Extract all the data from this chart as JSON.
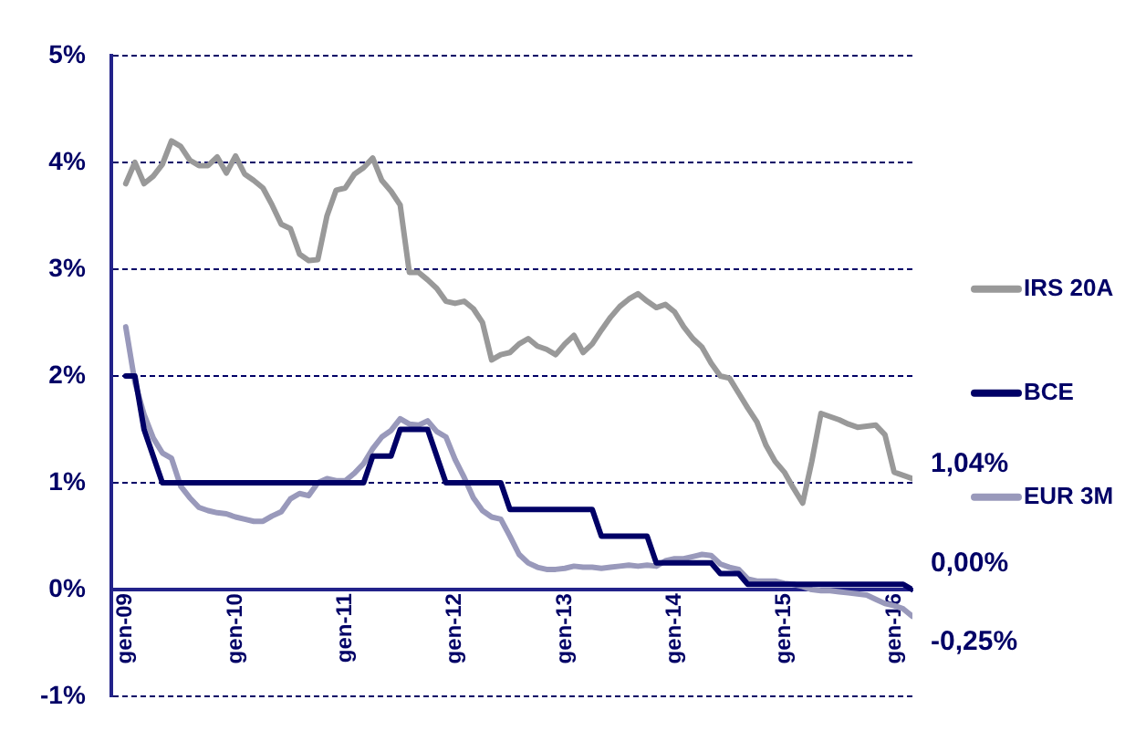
{
  "chart_data": {
    "type": "line",
    "categories": [
      "gen-09",
      null,
      null,
      null,
      null,
      null,
      null,
      null,
      null,
      null,
      null,
      null,
      "gen-10",
      null,
      null,
      null,
      null,
      null,
      null,
      null,
      null,
      null,
      null,
      null,
      "gen-11",
      null,
      null,
      null,
      null,
      null,
      null,
      null,
      null,
      null,
      null,
      null,
      "gen-12",
      null,
      null,
      null,
      null,
      null,
      null,
      null,
      null,
      null,
      null,
      null,
      "gen-13",
      null,
      null,
      null,
      null,
      null,
      null,
      null,
      null,
      null,
      null,
      null,
      "gen-14",
      null,
      null,
      null,
      null,
      null,
      null,
      null,
      null,
      null,
      null,
      null,
      "gen-15",
      null,
      null,
      null,
      null,
      null,
      null,
      null,
      null,
      null,
      null,
      null,
      "gen-16",
      null,
      null
    ],
    "series": [
      {
        "name": "IRS 20A",
        "color": "#999999",
        "values": [
          3.8,
          4.0,
          3.8,
          3.87,
          3.98,
          4.2,
          4.15,
          4.02,
          3.97,
          3.97,
          4.05,
          3.9,
          4.06,
          3.89,
          3.83,
          3.76,
          3.6,
          3.42,
          3.38,
          3.14,
          3.08,
          3.09,
          3.5,
          3.74,
          3.76,
          3.89,
          3.95,
          4.04,
          3.83,
          3.73,
          3.6,
          2.97,
          2.97,
          2.9,
          2.82,
          2.7,
          2.68,
          2.7,
          2.63,
          2.5,
          2.15,
          2.2,
          2.22,
          2.3,
          2.35,
          2.28,
          2.25,
          2.2,
          2.3,
          2.38,
          2.22,
          2.3,
          2.43,
          2.55,
          2.65,
          2.72,
          2.77,
          2.7,
          2.64,
          2.67,
          2.6,
          2.46,
          2.35,
          2.27,
          2.12,
          2.0,
          1.98,
          1.84,
          1.7,
          1.57,
          1.35,
          1.2,
          1.1,
          0.95,
          0.81,
          1.2,
          1.65,
          1.62,
          1.59,
          1.55,
          1.52,
          1.53,
          1.54,
          1.45,
          1.1,
          1.07,
          1.04
        ]
      },
      {
        "name": "BCE",
        "color": "#000066",
        "values": [
          2.0,
          2.0,
          1.5,
          1.25,
          1.0,
          1.0,
          1.0,
          1.0,
          1.0,
          1.0,
          1.0,
          1.0,
          1.0,
          1.0,
          1.0,
          1.0,
          1.0,
          1.0,
          1.0,
          1.0,
          1.0,
          1.0,
          1.0,
          1.0,
          1.0,
          1.0,
          1.0,
          1.25,
          1.25,
          1.25,
          1.5,
          1.5,
          1.5,
          1.5,
          1.25,
          1.0,
          1.0,
          1.0,
          1.0,
          1.0,
          1.0,
          1.0,
          0.75,
          0.75,
          0.75,
          0.75,
          0.75,
          0.75,
          0.75,
          0.75,
          0.75,
          0.75,
          0.5,
          0.5,
          0.5,
          0.5,
          0.5,
          0.5,
          0.25,
          0.25,
          0.25,
          0.25,
          0.25,
          0.25,
          0.25,
          0.15,
          0.15,
          0.15,
          0.05,
          0.05,
          0.05,
          0.05,
          0.05,
          0.05,
          0.05,
          0.05,
          0.05,
          0.05,
          0.05,
          0.05,
          0.05,
          0.05,
          0.05,
          0.05,
          0.05,
          0.05,
          0.0
        ]
      },
      {
        "name": "EUR 3M",
        "color": "#9999bb",
        "values": [
          2.46,
          1.94,
          1.64,
          1.42,
          1.28,
          1.23,
          0.97,
          0.86,
          0.77,
          0.74,
          0.72,
          0.71,
          0.68,
          0.66,
          0.64,
          0.64,
          0.69,
          0.73,
          0.85,
          0.9,
          0.88,
          1.0,
          1.04,
          1.02,
          1.02,
          1.09,
          1.18,
          1.32,
          1.43,
          1.49,
          1.6,
          1.55,
          1.54,
          1.58,
          1.48,
          1.43,
          1.22,
          1.05,
          0.86,
          0.74,
          0.68,
          0.66,
          0.5,
          0.33,
          0.25,
          0.21,
          0.19,
          0.19,
          0.2,
          0.22,
          0.21,
          0.21,
          0.2,
          0.21,
          0.22,
          0.23,
          0.22,
          0.23,
          0.22,
          0.27,
          0.29,
          0.29,
          0.31,
          0.33,
          0.32,
          0.24,
          0.21,
          0.19,
          0.1,
          0.08,
          0.08,
          0.08,
          0.06,
          0.05,
          0.03,
          0.0,
          -0.01,
          -0.01,
          -0.02,
          -0.03,
          -0.04,
          -0.05,
          -0.09,
          -0.13,
          -0.15,
          -0.18,
          -0.25
        ]
      }
    ],
    "ylim": [
      -1,
      5
    ],
    "yticks": [
      {
        "value": -1,
        "label": "-1%"
      },
      {
        "value": 0,
        "label": "0%"
      },
      {
        "value": 1,
        "label": "1%"
      },
      {
        "value": 2,
        "label": "2%"
      },
      {
        "value": 3,
        "label": "3%"
      },
      {
        "value": 4,
        "label": "4%"
      },
      {
        "value": 5,
        "label": "5%"
      }
    ],
    "grid": "y",
    "legend": "right",
    "marker": "none",
    "line_style": "solid",
    "annotations": [
      "1,04%",
      "0,00%",
      "-0,25%"
    ]
  }
}
